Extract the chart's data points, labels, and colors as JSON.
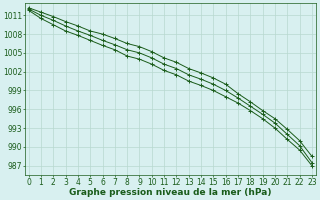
{
  "xlabel": "Graphe pression niveau de la mer (hPa)",
  "x": [
    0,
    1,
    2,
    3,
    4,
    5,
    6,
    7,
    8,
    9,
    10,
    11,
    12,
    13,
    14,
    15,
    16,
    17,
    18,
    19,
    20,
    21,
    22,
    23
  ],
  "y_main": [
    1012.0,
    1011.0,
    1010.2,
    1009.3,
    1008.5,
    1007.8,
    1007.0,
    1006.3,
    1005.5,
    1005.0,
    1004.2,
    1003.2,
    1002.5,
    1001.5,
    1000.8,
    1000.0,
    999.0,
    997.8,
    996.5,
    995.2,
    993.8,
    992.0,
    990.2,
    987.5
  ],
  "y_upper": [
    1012.2,
    1011.5,
    1010.8,
    1010.0,
    1009.3,
    1008.5,
    1008.0,
    1007.3,
    1006.5,
    1006.0,
    1005.2,
    1004.2,
    1003.5,
    1002.5,
    1001.8,
    1001.0,
    1000.0,
    998.5,
    997.2,
    995.8,
    994.5,
    992.8,
    991.0,
    988.5
  ],
  "y_lower": [
    1011.8,
    1010.5,
    1009.5,
    1008.5,
    1007.8,
    1007.0,
    1006.2,
    1005.5,
    1004.5,
    1004.0,
    1003.2,
    1002.2,
    1001.5,
    1000.5,
    999.8,
    999.0,
    998.0,
    997.0,
    995.8,
    994.5,
    993.0,
    991.2,
    989.5,
    987.0
  ],
  "bg_color": "#d8f0f0",
  "line_color": "#1a5c1a",
  "grid_color": "#b8d8d0",
  "text_color": "#1a5c1a",
  "ylim": [
    985.5,
    1013.0
  ],
  "yticks": [
    987,
    990,
    993,
    996,
    999,
    1002,
    1005,
    1008,
    1011
  ],
  "xticks": [
    0,
    1,
    2,
    3,
    4,
    5,
    6,
    7,
    8,
    9,
    10,
    11,
    12,
    13,
    14,
    15,
    16,
    17,
    18,
    19,
    20,
    21,
    22,
    23
  ],
  "xlim": [
    -0.3,
    23.3
  ],
  "tick_fontsize": 5.5,
  "label_fontsize": 6.5
}
